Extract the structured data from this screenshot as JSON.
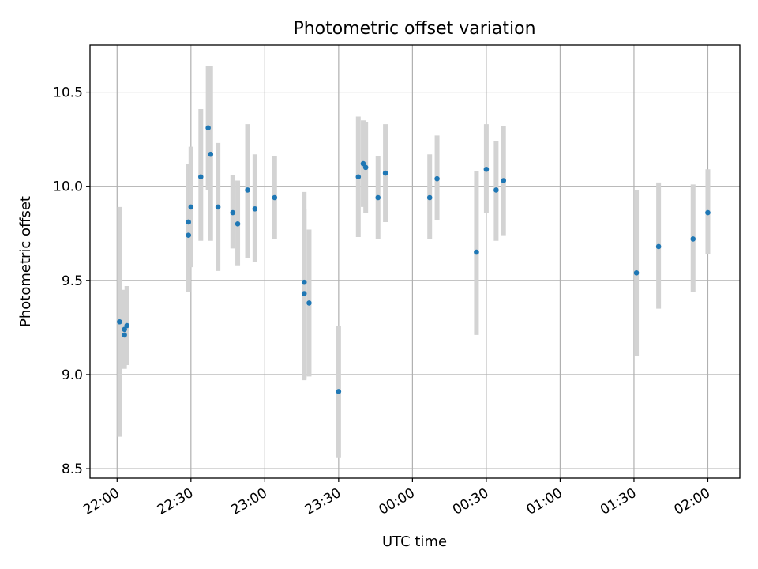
{
  "chart_data": {
    "type": "scatter",
    "title": "Photometric offset variation",
    "xlabel": "UTC time",
    "ylabel": "Photometric offset",
    "x_ticks": [
      "22:00",
      "22:30",
      "23:00",
      "23:30",
      "00:00",
      "00:30",
      "01:00",
      "01:30",
      "02:00"
    ],
    "y_ticks": [
      8.5,
      9.0,
      9.5,
      10.0,
      10.5
    ],
    "xlim": [
      "21:49",
      "02:13"
    ],
    "ylim": [
      8.45,
      10.75
    ],
    "grid": true,
    "colors": {
      "point": "#1f77b4",
      "errorbar": "#d3d3d3",
      "grid": "#b0b0b0"
    },
    "points": [
      {
        "x": "22:01",
        "y": 9.28,
        "err_low": 8.67,
        "err_high": 9.89
      },
      {
        "x": "22:03",
        "y": 9.21,
        "err_low": 9.05,
        "err_high": 9.36
      },
      {
        "x": "22:03",
        "y": 9.24,
        "err_low": 9.03,
        "err_high": 9.45
      },
      {
        "x": "22:04",
        "y": 9.26,
        "err_low": 9.05,
        "err_high": 9.47
      },
      {
        "x": "22:29",
        "y": 9.74,
        "err_low": 9.44,
        "err_high": 10.05
      },
      {
        "x": "22:29",
        "y": 9.81,
        "err_low": 9.49,
        "err_high": 10.12
      },
      {
        "x": "22:30",
        "y": 9.89,
        "err_low": 9.57,
        "err_high": 10.21
      },
      {
        "x": "22:34",
        "y": 10.05,
        "err_low": 9.71,
        "err_high": 10.41
      },
      {
        "x": "22:37",
        "y": 10.31,
        "err_low": 9.98,
        "err_high": 10.64
      },
      {
        "x": "22:38",
        "y": 10.17,
        "err_low": 9.71,
        "err_high": 10.64
      },
      {
        "x": "22:41",
        "y": 9.89,
        "err_low": 9.55,
        "err_high": 10.23
      },
      {
        "x": "22:47",
        "y": 9.86,
        "err_low": 9.67,
        "err_high": 10.06
      },
      {
        "x": "22:49",
        "y": 9.8,
        "err_low": 9.58,
        "err_high": 10.03
      },
      {
        "x": "22:53",
        "y": 9.98,
        "err_low": 9.62,
        "err_high": 10.33
      },
      {
        "x": "22:56",
        "y": 9.88,
        "err_low": 9.6,
        "err_high": 10.17
      },
      {
        "x": "23:04",
        "y": 9.94,
        "err_low": 9.72,
        "err_high": 10.16
      },
      {
        "x": "23:16",
        "y": 9.49,
        "err_low": 8.97,
        "err_high": 9.97
      },
      {
        "x": "23:16",
        "y": 9.43,
        "err_low": 8.98,
        "err_high": 9.88
      },
      {
        "x": "23:18",
        "y": 9.38,
        "err_low": 8.99,
        "err_high": 9.77
      },
      {
        "x": "23:30",
        "y": 8.91,
        "err_low": 8.56,
        "err_high": 9.26
      },
      {
        "x": "23:38",
        "y": 10.05,
        "err_low": 9.73,
        "err_high": 10.37
      },
      {
        "x": "23:40",
        "y": 10.12,
        "err_low": 9.89,
        "err_high": 10.35
      },
      {
        "x": "23:41",
        "y": 10.1,
        "err_low": 9.86,
        "err_high": 10.34
      },
      {
        "x": "23:46",
        "y": 9.94,
        "err_low": 9.72,
        "err_high": 10.16
      },
      {
        "x": "23:49",
        "y": 10.07,
        "err_low": 9.81,
        "err_high": 10.33
      },
      {
        "x": "00:07",
        "y": 9.94,
        "err_low": 9.72,
        "err_high": 10.17
      },
      {
        "x": "00:10",
        "y": 10.04,
        "err_low": 9.82,
        "err_high": 10.27
      },
      {
        "x": "00:26",
        "y": 9.65,
        "err_low": 9.21,
        "err_high": 10.08
      },
      {
        "x": "00:30",
        "y": 10.09,
        "err_low": 9.86,
        "err_high": 10.33
      },
      {
        "x": "00:34",
        "y": 9.98,
        "err_low": 9.71,
        "err_high": 10.24
      },
      {
        "x": "00:37",
        "y": 10.03,
        "err_low": 9.74,
        "err_high": 10.32
      },
      {
        "x": "01:31",
        "y": 9.54,
        "err_low": 9.1,
        "err_high": 9.98
      },
      {
        "x": "01:40",
        "y": 9.68,
        "err_low": 9.35,
        "err_high": 10.02
      },
      {
        "x": "01:54",
        "y": 9.72,
        "err_low": 9.44,
        "err_high": 10.01
      },
      {
        "x": "02:00",
        "y": 9.86,
        "err_low": 9.64,
        "err_high": 10.09
      }
    ]
  }
}
